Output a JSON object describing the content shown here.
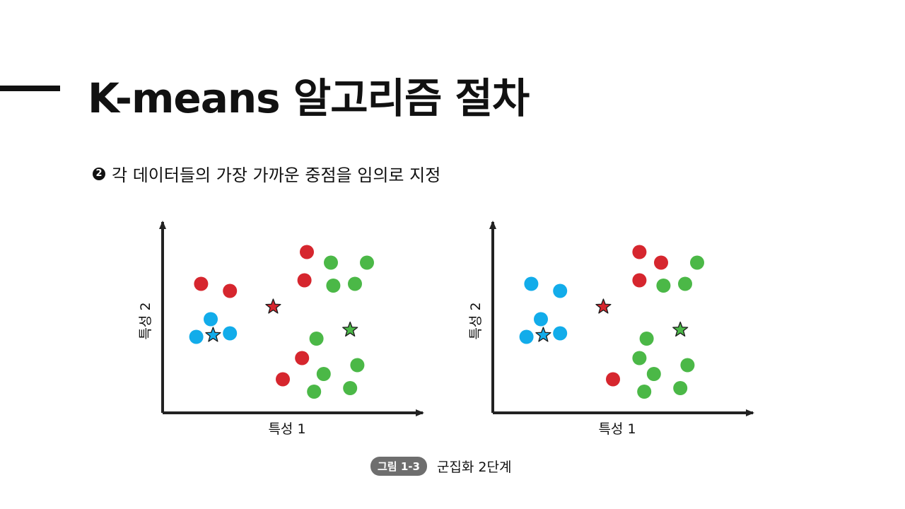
{
  "slide": {
    "title": "K-means 알고리즘 절차",
    "bullet_number": "2",
    "bullet_text": "각 데이터들의 가장 가까운 중점을 임의로 지정"
  },
  "figure": {
    "badge": "그림 1-3",
    "caption": "군집화 2단계"
  },
  "colors": {
    "red": "#d6262e",
    "green": "#4bb847",
    "blue": "#12acea",
    "axis": "#222222"
  },
  "chart_data": [
    {
      "type": "scatter",
      "xlabel": "특성 1",
      "ylabel": "특성 2",
      "xlim": [
        0,
        100
      ],
      "ylim": [
        0,
        100
      ],
      "series": [
        {
          "color": "red",
          "marker": "circle",
          "x": [
            16,
            28,
            60,
            59,
            58,
            50
          ],
          "y": [
            73,
            69,
            91,
            75,
            31,
            19
          ]
        },
        {
          "color": "blue",
          "marker": "circle",
          "x": [
            20,
            14,
            28
          ],
          "y": [
            53,
            43,
            45
          ]
        },
        {
          "color": "green",
          "marker": "circle",
          "x": [
            70,
            85,
            71,
            80,
            64,
            67,
            81,
            63,
            78
          ],
          "y": [
            85,
            85,
            72,
            73,
            42,
            22,
            27,
            12,
            14
          ]
        },
        {
          "color": "red",
          "marker": "star",
          "x": [
            46
          ],
          "y": [
            60
          ]
        },
        {
          "color": "blue",
          "marker": "star",
          "x": [
            21
          ],
          "y": [
            44
          ]
        },
        {
          "color": "green",
          "marker": "star",
          "x": [
            78
          ],
          "y": [
            47
          ]
        }
      ]
    },
    {
      "type": "scatter",
      "xlabel": "특성 1",
      "ylabel": "특성 2",
      "xlim": [
        0,
        100
      ],
      "ylim": [
        0,
        100
      ],
      "series": [
        {
          "color": "red",
          "marker": "circle",
          "x": [
            61,
            70,
            61,
            50
          ],
          "y": [
            91,
            85,
            75,
            19
          ]
        },
        {
          "color": "blue",
          "marker": "circle",
          "x": [
            16,
            28,
            20,
            14,
            28
          ],
          "y": [
            73,
            69,
            53,
            43,
            45
          ]
        },
        {
          "color": "green",
          "marker": "circle",
          "x": [
            85,
            71,
            80,
            64,
            61,
            67,
            81,
            63,
            78
          ],
          "y": [
            85,
            72,
            73,
            42,
            31,
            22,
            27,
            12,
            14
          ]
        },
        {
          "color": "red",
          "marker": "star",
          "x": [
            46
          ],
          "y": [
            60
          ]
        },
        {
          "color": "blue",
          "marker": "star",
          "x": [
            21
          ],
          "y": [
            44
          ]
        },
        {
          "color": "green",
          "marker": "star",
          "x": [
            78
          ],
          "y": [
            47
          ]
        }
      ]
    }
  ]
}
